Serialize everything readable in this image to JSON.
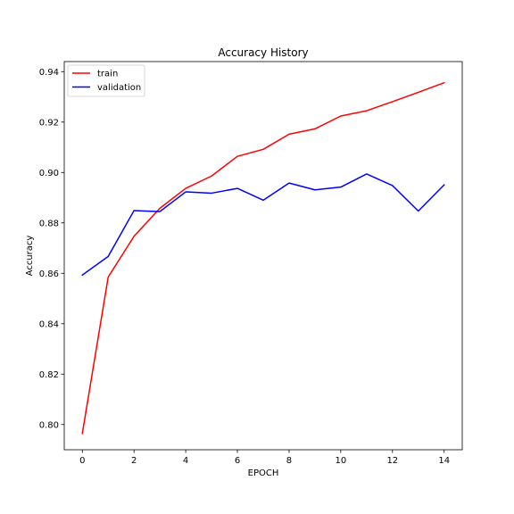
{
  "chart_data": {
    "type": "line",
    "title": "Accuracy History",
    "xlabel": "EPOCH",
    "ylabel": "Accuracy",
    "x": [
      0,
      1,
      2,
      3,
      4,
      5,
      6,
      7,
      8,
      9,
      10,
      11,
      12,
      13,
      14
    ],
    "xlim": [
      -0.7,
      14.7
    ],
    "ylim": [
      0.79,
      0.944
    ],
    "x_ticks": [
      0,
      2,
      4,
      6,
      8,
      10,
      12,
      14
    ],
    "x_tick_labels": [
      "0",
      "2",
      "4",
      "6",
      "8",
      "10",
      "12",
      "14"
    ],
    "y_ticks": [
      0.8,
      0.82,
      0.84,
      0.86,
      0.88,
      0.9,
      0.92,
      0.94
    ],
    "y_tick_labels": [
      "0.80",
      "0.82",
      "0.84",
      "0.86",
      "0.88",
      "0.90",
      "0.92",
      "0.94"
    ],
    "grid": false,
    "legend_position": "top-left",
    "series": [
      {
        "name": "train",
        "color": "#ff0000",
        "values": [
          0.7965,
          0.8585,
          0.8747,
          0.8858,
          0.8937,
          0.8986,
          0.9064,
          0.9092,
          0.9152,
          0.9173,
          0.9224,
          0.9245,
          0.9281,
          0.9318,
          0.9356
        ]
      },
      {
        "name": "validation",
        "color": "#0000ff",
        "values": [
          0.8593,
          0.8667,
          0.8849,
          0.8845,
          0.8923,
          0.8918,
          0.8937,
          0.889,
          0.8958,
          0.8931,
          0.8942,
          0.8994,
          0.8948,
          0.8847,
          0.8951
        ]
      }
    ]
  }
}
